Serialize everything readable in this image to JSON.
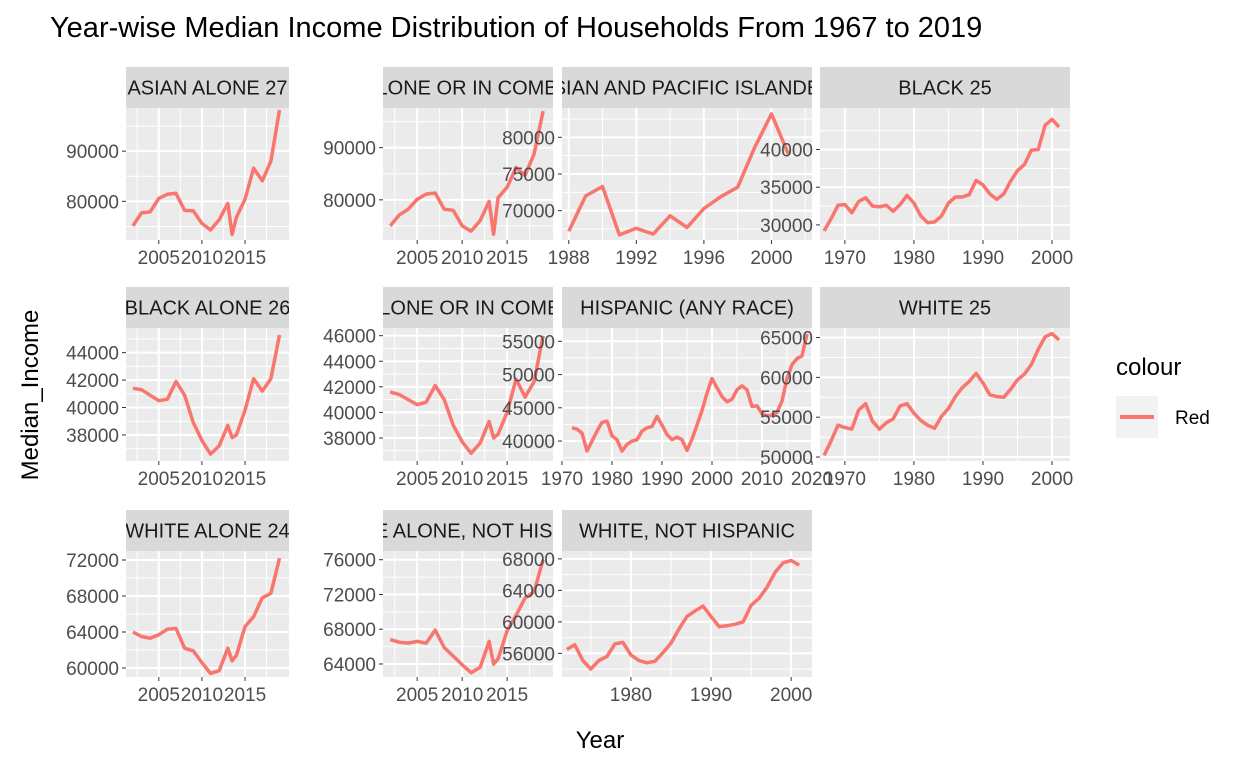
{
  "title": "Year-wise Median Income Distribution of Households From 1967 to 2019",
  "xlabel": "Year",
  "ylabel": "Median_Income",
  "legend": {
    "title": "colour",
    "label": "Red",
    "color": "#F8766D",
    "position": "right"
  },
  "colors": {
    "panel_bg": "#EBEBEB",
    "strip_bg": "#D9D9D9",
    "grid": "#FFFFFF",
    "line": "#F8766D"
  },
  "chart_data": [
    {
      "type": "line",
      "panel_label": "ASIAN ALONE 27",
      "xlim": [
        2001.2,
        2020.1
      ],
      "ylim": [
        72300,
        98600
      ],
      "xticks": [
        2005,
        2010,
        2015
      ],
      "yticks": [
        80000,
        90000
      ],
      "x": [
        2002,
        2003,
        2004,
        2005,
        2006,
        2007,
        2008,
        2009,
        2010,
        2011,
        2012,
        2013,
        2013.5,
        2014,
        2015,
        2016,
        2017,
        2018,
        2019
      ],
      "y": [
        75100,
        77700,
        77900,
        80600,
        81400,
        81600,
        78200,
        78100,
        75600,
        74300,
        76300,
        79600,
        73400,
        76800,
        80400,
        86600,
        84100,
        88000,
        98200
      ]
    },
    {
      "type": "line",
      "panel_label": "ASIAN ALONE OR IN COMBINATION",
      "xlim": [
        2001.2,
        2020.1
      ],
      "ylim": [
        72300,
        97600
      ],
      "xticks": [
        2005,
        2010,
        2015
      ],
      "yticks": [
        80000,
        90000
      ],
      "x": [
        2002,
        2003,
        2004,
        2005,
        2006,
        2007,
        2008,
        2009,
        2010,
        2011,
        2012,
        2013,
        2013.5,
        2014,
        2015,
        2016,
        2017,
        2018,
        2019
      ],
      "y": [
        75000,
        77100,
        78200,
        80100,
        81100,
        81300,
        78200,
        78000,
        75000,
        74000,
        76000,
        79700,
        73400,
        80400,
        82400,
        86200,
        84700,
        88800,
        97000
      ]
    },
    {
      "type": "line",
      "panel_label": "ASIAN AND PACIFIC ISLANDER",
      "xlim": [
        1987.6,
        2002.4
      ],
      "ylim": [
        66000,
        84000
      ],
      "xticks": [
        1988,
        1992,
        1996,
        2000
      ],
      "yticks": [
        70000,
        75000,
        80000
      ],
      "x": [
        1988,
        1989,
        1990,
        1991,
        1992,
        1993,
        1994,
        1995,
        1996,
        1997,
        1998,
        1999,
        2000,
        2001
      ],
      "y": [
        67200,
        72000,
        73300,
        66700,
        67600,
        66800,
        69300,
        67700,
        70300,
        71900,
        73200,
        78600,
        83200,
        77700
      ]
    },
    {
      "type": "line",
      "panel_label": "BLACK 25",
      "xlim": [
        1966.4,
        2002.6
      ],
      "ylim": [
        28000,
        45500
      ],
      "xticks": [
        1970,
        1980,
        1990,
        2000
      ],
      "yticks": [
        30000,
        35000,
        40000
      ],
      "x": [
        1967,
        1968,
        1969,
        1970,
        1971,
        1972,
        1973,
        1974,
        1975,
        1976,
        1977,
        1978,
        1979,
        1980,
        1981,
        1982,
        1983,
        1984,
        1985,
        1986,
        1987,
        1988,
        1989,
        1990,
        1991,
        1992,
        1993,
        1994,
        1995,
        1996,
        1997,
        1998,
        1999,
        2000,
        2001
      ],
      "y": [
        29200,
        30800,
        32600,
        32700,
        31600,
        33100,
        33600,
        32500,
        32400,
        32600,
        31800,
        32700,
        33900,
        32900,
        31200,
        30300,
        30400,
        31200,
        32900,
        33700,
        33700,
        34000,
        35900,
        35300,
        34100,
        33400,
        34100,
        35800,
        37200,
        38000,
        39900,
        40000,
        43200,
        44000,
        43000
      ]
    },
    {
      "type": "line",
      "panel_label": "BLACK ALONE 26",
      "xlim": [
        2001.2,
        2020.1
      ],
      "ylim": [
        36100,
        45800
      ],
      "xticks": [
        2005,
        2010,
        2015
      ],
      "yticks": [
        38000,
        40000,
        42000,
        44000
      ],
      "x": [
        2002,
        2003,
        2004,
        2005,
        2006,
        2007,
        2008,
        2009,
        2010,
        2011,
        2012,
        2013,
        2013.5,
        2014,
        2015,
        2016,
        2017,
        2018,
        2019
      ],
      "y": [
        41400,
        41300,
        40900,
        40500,
        40600,
        41900,
        40900,
        38900,
        37600,
        36600,
        37200,
        38700,
        37800,
        38000,
        39800,
        42100,
        41200,
        42100,
        45300
      ]
    },
    {
      "type": "line",
      "panel_label": "BLACK ALONE OR IN COMBINATION",
      "xlim": [
        2001.2,
        2020.1
      ],
      "ylim": [
        36200,
        46600
      ],
      "xticks": [
        2005,
        2010,
        2015
      ],
      "yticks": [
        38000,
        40000,
        42000,
        44000,
        46000
      ],
      "x": [
        2002,
        2003,
        2004,
        2005,
        2006,
        2007,
        2008,
        2009,
        2010,
        2011,
        2012,
        2013,
        2013.5,
        2014,
        2015,
        2016,
        2017,
        2018,
        2019
      ],
      "y": [
        41600,
        41400,
        41000,
        40600,
        40800,
        42100,
        41000,
        39000,
        37700,
        36800,
        37600,
        39300,
        38000,
        38300,
        40000,
        42600,
        41200,
        42400,
        46000
      ]
    },
    {
      "type": "line",
      "panel_label": "HISPANIC (ANY RACE)",
      "xlim": [
        1970,
        2020
      ],
      "ylim": [
        37000,
        57000
      ],
      "xticks": [
        1970,
        1980,
        1990,
        2000,
        2010,
        2020
      ],
      "yticks": [
        40000,
        45000,
        50000,
        55000
      ],
      "x": [
        1972,
        1973,
        1974,
        1975,
        1976,
        1977,
        1978,
        1979,
        1980,
        1981,
        1982,
        1983,
        1984,
        1985,
        1986,
        1987,
        1988,
        1989,
        1990,
        1991,
        1992,
        1993,
        1994,
        1995,
        1996,
        1997,
        1998,
        1999,
        2000,
        2001,
        2002,
        2003,
        2004,
        2005,
        2006,
        2007,
        2008,
        2009,
        2010,
        2011,
        2012,
        2013,
        2014,
        2015,
        2016,
        2017,
        2018,
        2019
      ],
      "y": [
        42000,
        41800,
        41200,
        38500,
        40000,
        41500,
        42800,
        43000,
        40800,
        40200,
        38500,
        39500,
        40000,
        40200,
        41500,
        42000,
        42200,
        43700,
        42400,
        41000,
        40200,
        40600,
        40200,
        38600,
        40300,
        42400,
        44600,
        47200,
        49400,
        48000,
        46700,
        45900,
        46300,
        47700,
        48300,
        47700,
        45200,
        45300,
        44100,
        43800,
        43900,
        44300,
        46000,
        49400,
        51500,
        52400,
        52800,
        56100
      ]
    },
    {
      "type": "line",
      "panel_label": "WHITE 25",
      "xlim": [
        1966.4,
        2002.6
      ],
      "ylim": [
        49500,
        66200
      ],
      "xticks": [
        1970,
        1980,
        1990,
        2000
      ],
      "yticks": [
        50000,
        55000,
        60000,
        65000
      ],
      "x": [
        1967,
        1968,
        1969,
        1970,
        1971,
        1972,
        1973,
        1974,
        1975,
        1976,
        1977,
        1978,
        1979,
        1980,
        1981,
        1982,
        1983,
        1984,
        1985,
        1986,
        1987,
        1988,
        1989,
        1990,
        1991,
        1992,
        1993,
        1994,
        1995,
        1996,
        1997,
        1998,
        1999,
        2000,
        2001
      ],
      "y": [
        50200,
        52000,
        54000,
        53700,
        53500,
        55900,
        56700,
        54500,
        53500,
        54300,
        54800,
        56400,
        56700,
        55500,
        54600,
        54000,
        53600,
        55100,
        56100,
        57600,
        58700,
        59500,
        60500,
        59300,
        57800,
        57600,
        57500,
        58500,
        59700,
        60400,
        61600,
        63500,
        65100,
        65500,
        64700
      ]
    },
    {
      "type": "line",
      "panel_label": "WHITE ALONE 24",
      "xlim": [
        2001.2,
        2020.1
      ],
      "ylim": [
        59000,
        73000
      ],
      "xticks": [
        2005,
        2010,
        2015
      ],
      "yticks": [
        60000,
        64000,
        68000,
        72000
      ],
      "x": [
        2002,
        2003,
        2004,
        2005,
        2006,
        2007,
        2008,
        2009,
        2010,
        2011,
        2012,
        2013,
        2013.5,
        2014,
        2015,
        2016,
        2017,
        2018,
        2019
      ],
      "y": [
        64000,
        63500,
        63300,
        63700,
        64300,
        64400,
        62200,
        61900,
        60600,
        59400,
        59700,
        62200,
        60800,
        61400,
        64600,
        65700,
        67800,
        68300,
        72200
      ]
    },
    {
      "type": "line",
      "panel_label": "WHITE ALONE, NOT HISPANIC",
      "xlim": [
        2001.2,
        2020.1
      ],
      "ylim": [
        62500,
        77000
      ],
      "xticks": [
        2005,
        2010,
        2015
      ],
      "yticks": [
        64000,
        68000,
        72000,
        76000
      ],
      "x": [
        2002,
        2003,
        2004,
        2005,
        2006,
        2007,
        2008,
        2009,
        2010,
        2011,
        2012,
        2013,
        2013.5,
        2014,
        2015,
        2016,
        2017,
        2018,
        2019
      ],
      "y": [
        66800,
        66500,
        66400,
        66600,
        66400,
        67900,
        65900,
        64900,
        63900,
        63000,
        63600,
        66600,
        64000,
        64600,
        67800,
        69600,
        71600,
        72300,
        76000
      ]
    },
    {
      "type": "line",
      "panel_label": "WHITE, NOT HISPANIC",
      "xlim": [
        1971.4,
        2002.6
      ],
      "ylim": [
        53000,
        69000
      ],
      "xticks": [
        1980,
        1990,
        2000
      ],
      "yticks": [
        56000,
        60000,
        64000,
        68000
      ],
      "x": [
        1972,
        1973,
        1974,
        1975,
        1976,
        1977,
        1978,
        1979,
        1980,
        1981,
        1982,
        1983,
        1984,
        1985,
        1986,
        1987,
        1988,
        1989,
        1990,
        1991,
        1992,
        1993,
        1994,
        1995,
        1996,
        1997,
        1998,
        1999,
        2000,
        2001
      ],
      "y": [
        56500,
        57100,
        55100,
        54000,
        55100,
        55600,
        57200,
        57400,
        55800,
        55100,
        54800,
        55000,
        56100,
        57300,
        59100,
        60700,
        61400,
        62000,
        60700,
        59400,
        59500,
        59700,
        60000,
        62100,
        63000,
        64400,
        66300,
        67500,
        67800,
        67200
      ]
    }
  ]
}
